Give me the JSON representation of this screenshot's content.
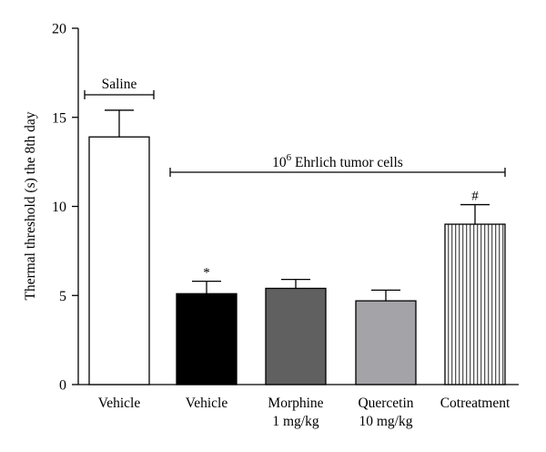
{
  "chart_data": {
    "type": "bar",
    "ylabel": "Thermal threshold (s) the 8th day",
    "ylim": [
      0,
      20
    ],
    "yticks": [
      0,
      5,
      10,
      15,
      20
    ],
    "grid": false,
    "bars": [
      {
        "label_lines": [
          "Vehicle"
        ],
        "value": 13.9,
        "error": 1.5,
        "fill": "#ffffff",
        "pattern": "none",
        "marker": ""
      },
      {
        "label_lines": [
          "Vehicle"
        ],
        "value": 5.1,
        "error": 0.7,
        "fill": "#000000",
        "pattern": "none",
        "marker": "*"
      },
      {
        "label_lines": [
          "Morphine",
          "1 mg/kg"
        ],
        "value": 5.4,
        "error": 0.5,
        "fill": "#606060",
        "pattern": "none",
        "marker": ""
      },
      {
        "label_lines": [
          "Quercetin",
          "10 mg/kg"
        ],
        "value": 4.7,
        "error": 0.6,
        "fill": "#a3a3a8",
        "pattern": "none",
        "marker": ""
      },
      {
        "label_lines": [
          "Cotreatment"
        ],
        "value": 9.0,
        "error": 1.1,
        "fill": "#ffffff",
        "pattern": "vertical-stripes",
        "marker": "#"
      }
    ],
    "annotations": [
      {
        "text": "Saline",
        "spans_bars": [
          0,
          0
        ]
      },
      {
        "text_base": "10",
        "text_sup": "6",
        "text_rest": " Ehrlich tumor cells",
        "spans_bars": [
          1,
          4
        ]
      }
    ]
  }
}
